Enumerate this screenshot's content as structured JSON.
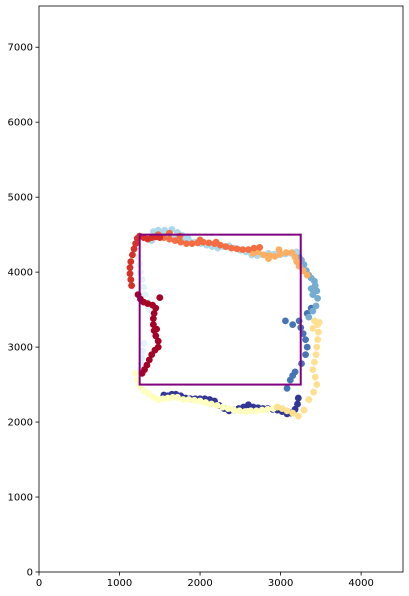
{
  "chart_data": {
    "type": "scatter",
    "title": "",
    "xlabel": "",
    "ylabel": "",
    "xlim": [
      0,
      4520
    ],
    "ylim": [
      0,
      7550
    ],
    "xticks": [
      0,
      1000,
      2000,
      3000,
      4000
    ],
    "yticks": [
      0,
      1000,
      2000,
      3000,
      4000,
      5000,
      6000,
      7000
    ],
    "xtick_labels": [
      "0",
      "1000",
      "2000",
      "3000",
      "4000"
    ],
    "ytick_labels": [
      "0",
      "1000",
      "2000",
      "3000",
      "4000",
      "5000",
      "6000",
      "7000"
    ],
    "grid": false,
    "legend": "none",
    "rectangle": {
      "x0": 1250,
      "y0": 2500,
      "x1": 3250,
      "y1": 4500,
      "color": "#800080"
    },
    "series": [
      {
        "color": "#313695",
        "points": [
          [
            1550,
            2360
          ],
          [
            1600,
            2350
          ],
          [
            1650,
            2370
          ],
          [
            1700,
            2370
          ],
          [
            1760,
            2350
          ],
          [
            1820,
            2320
          ],
          [
            1880,
            2310
          ],
          [
            1940,
            2310
          ],
          [
            2000,
            2310
          ],
          [
            2060,
            2310
          ],
          [
            2120,
            2300
          ],
          [
            2180,
            2280
          ],
          [
            2240,
            2220
          ],
          [
            2300,
            2180
          ],
          [
            2360,
            2150
          ],
          [
            2420,
            2160
          ],
          [
            2480,
            2180
          ],
          [
            2540,
            2200
          ],
          [
            2600,
            2230
          ],
          [
            2660,
            2200
          ],
          [
            2720,
            2190
          ],
          [
            2780,
            2180
          ],
          [
            2840,
            2180
          ],
          [
            2900,
            2170
          ],
          [
            2960,
            2160
          ],
          [
            3020,
            2140
          ],
          [
            3080,
            2110
          ],
          [
            3130,
            2120
          ],
          [
            3180,
            2170
          ],
          [
            3210,
            2240
          ],
          [
            3220,
            2320
          ]
        ]
      },
      {
        "color": "#4575b4",
        "points": [
          [
            3080,
            2450
          ],
          [
            3120,
            2560
          ],
          [
            3150,
            2620
          ],
          [
            3180,
            2670
          ],
          [
            3260,
            2780
          ],
          [
            3310,
            2900
          ],
          [
            3330,
            3000
          ],
          [
            3310,
            3100
          ],
          [
            3280,
            3180
          ],
          [
            3250,
            3260
          ],
          [
            3150,
            3300
          ],
          [
            3230,
            3350
          ],
          [
            3060,
            3350
          ],
          [
            3330,
            3450
          ],
          [
            3380,
            3520
          ]
        ]
      },
      {
        "color": "#74add1",
        "points": [
          [
            3350,
            3400
          ],
          [
            3400,
            3480
          ],
          [
            3440,
            3550
          ],
          [
            3460,
            3650
          ],
          [
            3450,
            3750
          ],
          [
            3430,
            3820
          ],
          [
            3420,
            3880
          ],
          [
            3380,
            3920
          ],
          [
            3350,
            3960
          ],
          [
            3320,
            4020
          ],
          [
            3290,
            4100
          ],
          [
            3260,
            4160
          ],
          [
            3230,
            4200
          ],
          [
            3400,
            3700
          ],
          [
            3380,
            3780
          ]
        ]
      },
      {
        "color": "#abd9e9",
        "points": [
          [
            3200,
            4270
          ],
          [
            3130,
            4250
          ],
          [
            3060,
            4240
          ],
          [
            2990,
            4230
          ],
          [
            2920,
            4240
          ],
          [
            2850,
            4250
          ],
          [
            2780,
            4230
          ],
          [
            2710,
            4220
          ],
          [
            2640,
            4230
          ],
          [
            2570,
            4270
          ],
          [
            2500,
            4290
          ],
          [
            2430,
            4320
          ],
          [
            2360,
            4350
          ],
          [
            2290,
            4340
          ],
          [
            2220,
            4320
          ],
          [
            2150,
            4340
          ],
          [
            2080,
            4360
          ],
          [
            2010,
            4380
          ],
          [
            1940,
            4400
          ],
          [
            1870,
            4410
          ],
          [
            1800,
            4440
          ],
          [
            1730,
            4460
          ],
          [
            1660,
            4470
          ],
          [
            1590,
            4490
          ],
          [
            1520,
            4510
          ],
          [
            1450,
            4530
          ],
          [
            1400,
            4420
          ],
          [
            1420,
            4540
          ],
          [
            1480,
            4560
          ],
          [
            1560,
            4560
          ],
          [
            1650,
            4570
          ],
          [
            1720,
            4530
          ],
          [
            1780,
            4490
          ],
          [
            1850,
            4460
          ]
        ]
      },
      {
        "color": "#e0f3f8",
        "points": [
          [
            1200,
            4300
          ],
          [
            1230,
            4200
          ],
          [
            1250,
            4100
          ],
          [
            1260,
            4000
          ],
          [
            1280,
            3900
          ],
          [
            1300,
            3800
          ],
          [
            1320,
            3700
          ],
          [
            1350,
            3600
          ],
          [
            1380,
            3500
          ],
          [
            1410,
            3420
          ],
          [
            1430,
            3320
          ],
          [
            1450,
            3220
          ],
          [
            1470,
            3150
          ],
          [
            1300,
            3050
          ],
          [
            1290,
            2950
          ],
          [
            1280,
            2860
          ],
          [
            1270,
            2780
          ],
          [
            1260,
            2700
          ],
          [
            1350,
            3550
          ],
          [
            1400,
            3480
          ]
        ]
      },
      {
        "color": "#ffffbf",
        "points": [
          [
            1200,
            2650
          ],
          [
            1220,
            2560
          ],
          [
            1250,
            2480
          ],
          [
            1300,
            2420
          ],
          [
            1360,
            2380
          ],
          [
            1420,
            2330
          ],
          [
            1480,
            2300
          ],
          [
            1540,
            2310
          ],
          [
            1600,
            2320
          ],
          [
            1660,
            2330
          ],
          [
            1720,
            2330
          ],
          [
            1790,
            2300
          ],
          [
            1860,
            2300
          ],
          [
            1930,
            2290
          ],
          [
            2000,
            2280
          ],
          [
            2070,
            2260
          ],
          [
            2140,
            2240
          ],
          [
            2210,
            2220
          ],
          [
            2280,
            2200
          ],
          [
            2350,
            2180
          ],
          [
            2420,
            2160
          ],
          [
            2490,
            2150
          ],
          [
            2560,
            2140
          ],
          [
            2630,
            2150
          ],
          [
            2700,
            2150
          ],
          [
            2770,
            2160
          ],
          [
            2840,
            2170
          ],
          [
            2910,
            2180
          ]
        ]
      },
      {
        "color": "#fee090",
        "points": [
          [
            2960,
            2200
          ],
          [
            3020,
            2180
          ],
          [
            3080,
            2150
          ],
          [
            3150,
            2120
          ],
          [
            3220,
            2080
          ],
          [
            3290,
            2160
          ],
          [
            3350,
            2300
          ],
          [
            3410,
            2400
          ],
          [
            3450,
            2500
          ],
          [
            3430,
            2600
          ],
          [
            3400,
            2700
          ],
          [
            3420,
            2800
          ],
          [
            3440,
            2900
          ],
          [
            3450,
            3000
          ],
          [
            3460,
            3100
          ],
          [
            3470,
            3200
          ],
          [
            3460,
            3300
          ],
          [
            3420,
            3350
          ],
          [
            3400,
            3250
          ],
          [
            3480,
            3330
          ]
        ]
      },
      {
        "color": "#fdae61",
        "points": [
          [
            2660,
            4250
          ],
          [
            2720,
            4270
          ],
          [
            2790,
            4230
          ],
          [
            2860,
            4220
          ],
          [
            2930,
            4210
          ],
          [
            3000,
            4240
          ],
          [
            3070,
            4260
          ],
          [
            3140,
            4260
          ],
          [
            3180,
            4200
          ],
          [
            3200,
            4140
          ],
          [
            3230,
            4080
          ],
          [
            3280,
            4020
          ],
          [
            3330,
            3960
          ],
          [
            2850,
            4180
          ],
          [
            2980,
            4300
          ]
        ]
      },
      {
        "color": "#f46d43",
        "points": [
          [
            1550,
            4460
          ],
          [
            1620,
            4440
          ],
          [
            1690,
            4420
          ],
          [
            1760,
            4400
          ],
          [
            1830,
            4380
          ],
          [
            1900,
            4380
          ],
          [
            1970,
            4390
          ],
          [
            2040,
            4400
          ],
          [
            2110,
            4390
          ],
          [
            2180,
            4380
          ],
          [
            2250,
            4360
          ],
          [
            2320,
            4340
          ],
          [
            2390,
            4320
          ],
          [
            2460,
            4310
          ],
          [
            2530,
            4300
          ],
          [
            2600,
            4300
          ],
          [
            2670,
            4320
          ],
          [
            2740,
            4330
          ],
          [
            1480,
            4500
          ],
          [
            1620,
            4520
          ],
          [
            1750,
            4480
          ],
          [
            2000,
            4430
          ],
          [
            2200,
            4400
          ]
        ]
      },
      {
        "color": "#d73027",
        "points": [
          [
            1150,
            3820
          ],
          [
            1140,
            3900
          ],
          [
            1130,
            3980
          ],
          [
            1130,
            4060
          ],
          [
            1140,
            4140
          ],
          [
            1160,
            4230
          ],
          [
            1180,
            4310
          ],
          [
            1200,
            4380
          ],
          [
            1220,
            4450
          ],
          [
            1250,
            4480
          ],
          [
            1300,
            4460
          ],
          [
            1350,
            4440
          ],
          [
            1400,
            4460
          ],
          [
            1450,
            4470
          ],
          [
            1500,
            4460
          ]
        ]
      },
      {
        "color": "#a50026",
        "points": [
          [
            1230,
            3700
          ],
          [
            1260,
            3640
          ],
          [
            1300,
            3600
          ],
          [
            1350,
            3580
          ],
          [
            1410,
            3560
          ],
          [
            1450,
            3520
          ],
          [
            1430,
            3450
          ],
          [
            1420,
            3380
          ],
          [
            1420,
            3300
          ],
          [
            1430,
            3220
          ],
          [
            1450,
            3150
          ],
          [
            1480,
            3080
          ],
          [
            1480,
            3000
          ],
          [
            1440,
            2960
          ],
          [
            1400,
            2900
          ],
          [
            1370,
            2830
          ],
          [
            1340,
            2760
          ],
          [
            1310,
            2700
          ],
          [
            1280,
            2650
          ],
          [
            1500,
            3660
          ],
          [
            1460,
            3240
          ]
        ]
      }
    ]
  }
}
